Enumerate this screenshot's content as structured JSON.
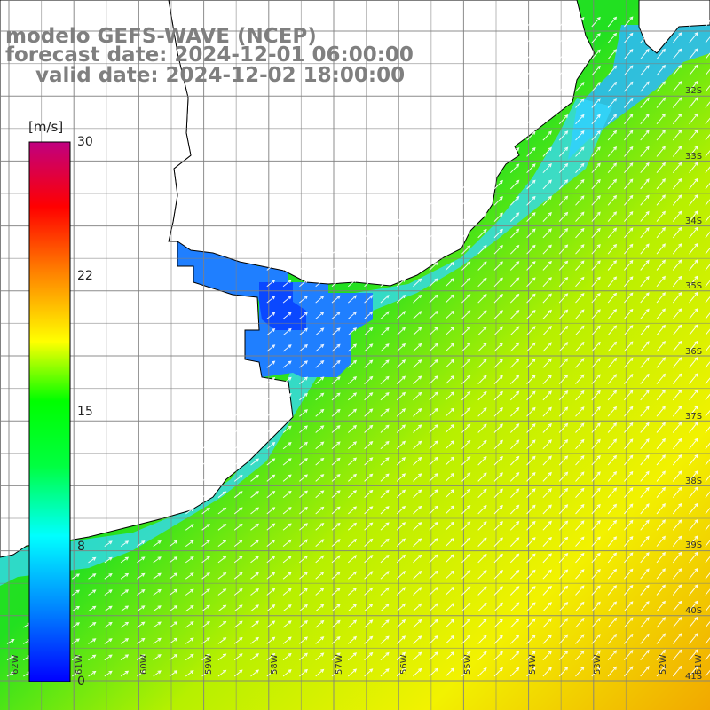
{
  "title": {
    "model": "modelo GEFS-WAVE (NCEP)",
    "forecast": "forecast date: 2024-12-01 06:00:00",
    "valid": "valid date: 2024-12-02 18:00:00"
  },
  "colorbar": {
    "unit": "[m/s]",
    "ticks": [
      "30",
      "22",
      "15",
      "8",
      "0"
    ],
    "colors": [
      "#0000ff",
      "#0080ff",
      "#00ffff",
      "#00ff00",
      "#ffff00",
      "#ff8000",
      "#ff0000",
      "#c00080"
    ]
  },
  "map": {
    "lat_labels": [
      "32S",
      "33S",
      "34S",
      "35S",
      "36S",
      "37S",
      "38S",
      "39S",
      "40S",
      "41S"
    ],
    "lon_labels": [
      "62W",
      "61W",
      "60W",
      "59W",
      "58W",
      "57W",
      "56W",
      "55W",
      "54W",
      "53W",
      "52W",
      "51W"
    ],
    "land_color": "#ffffff",
    "grid_color": "#808080",
    "coast_color": "#000000",
    "arrow_color": "#ffffff"
  }
}
